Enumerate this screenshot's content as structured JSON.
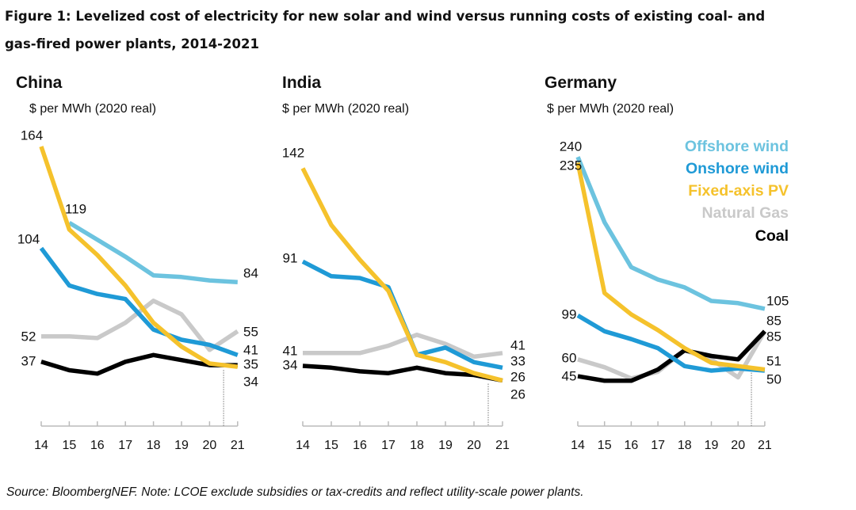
{
  "title_line1": "Figure 1: Levelized cost of electricity for new solar and wind versus running costs of existing coal- and",
  "title_line2": "gas-fired power plants, 2014-2021",
  "source": "Source: BloombergNEF. Note: LCOE exclude subsidies or tax-credits and reflect utility-scale power plants.",
  "legend": [
    {
      "name": "Offshore wind",
      "color": "#6cc3df"
    },
    {
      "name": "Onshore wind",
      "color": "#1f9ad6"
    },
    {
      "name": "Fixed-axis PV",
      "color": "#f5c22c"
    },
    {
      "name": "Natural Gas",
      "color": "#c9c9c9"
    },
    {
      "name": "Coal",
      "color": "#000000"
    }
  ],
  "chart_data": [
    {
      "type": "line",
      "title": "China",
      "ylabel": "$ per MWh (2020 real)",
      "x": [
        "14",
        "15",
        "16",
        "17",
        "18",
        "19",
        "20",
        "21"
      ],
      "series": [
        {
          "name": "Natural Gas",
          "values": [
            52,
            52,
            51,
            60,
            73,
            65,
            44,
            55
          ]
        },
        {
          "name": "Coal",
          "values": [
            37,
            32,
            30,
            37,
            41,
            38,
            35,
            35
          ]
        },
        {
          "name": "Offshore wind",
          "values": [
            null,
            119,
            109,
            99,
            88,
            87,
            85,
            84
          ]
        },
        {
          "name": "Onshore wind",
          "values": [
            104,
            82,
            77,
            74,
            56,
            50,
            47,
            41
          ]
        },
        {
          "name": "Fixed-axis PV",
          "values": [
            164,
            115,
            100,
            82,
            60,
            46,
            36,
            34
          ]
        }
      ],
      "labels": [
        "164",
        "119",
        "104",
        "52",
        "37",
        "84",
        "55",
        "41",
        "35",
        "34"
      ]
    },
    {
      "type": "line",
      "title": "India",
      "ylabel": "$ per MWh (2020 real)",
      "x": [
        "14",
        "15",
        "16",
        "17",
        "18",
        "19",
        "20",
        "21"
      ],
      "series": [
        {
          "name": "Natural Gas",
          "values": [
            41,
            41,
            41,
            45,
            51,
            46,
            39,
            41
          ]
        },
        {
          "name": "Coal",
          "values": [
            34,
            33,
            31,
            30,
            33,
            30,
            29,
            26
          ]
        },
        {
          "name": "Onshore wind",
          "values": [
            91,
            83,
            82,
            77,
            40,
            44,
            36,
            33
          ]
        },
        {
          "name": "Fixed-axis PV",
          "values": [
            142,
            111,
            92,
            75,
            40,
            36,
            30,
            26
          ]
        }
      ],
      "labels": [
        "142",
        "91",
        "41",
        "34",
        "41",
        "33",
        "26",
        "26"
      ]
    },
    {
      "type": "line",
      "title": "Germany",
      "ylabel": "$ per MWh (2020 real)",
      "x": [
        "14",
        "15",
        "16",
        "17",
        "18",
        "19",
        "20",
        "21"
      ],
      "series": [
        {
          "name": "Natural Gas",
          "values": [
            60,
            53,
            43,
            49,
            68,
            60,
            44,
            85
          ]
        },
        {
          "name": "Coal",
          "values": [
            45,
            41,
            41,
            51,
            68,
            63,
            60,
            85
          ]
        },
        {
          "name": "Offshore wind",
          "values": [
            240,
            182,
            142,
            131,
            124,
            112,
            110,
            105
          ]
        },
        {
          "name": "Onshore wind",
          "values": [
            99,
            85,
            78,
            70,
            54,
            50,
            52,
            50
          ]
        },
        {
          "name": "Fixed-axis PV",
          "values": [
            235,
            119,
            100,
            86,
            70,
            57,
            54,
            51
          ]
        }
      ],
      "labels": [
        "240",
        "235",
        "99",
        "60",
        "45",
        "105",
        "85",
        "85",
        "51",
        "50"
      ]
    }
  ]
}
